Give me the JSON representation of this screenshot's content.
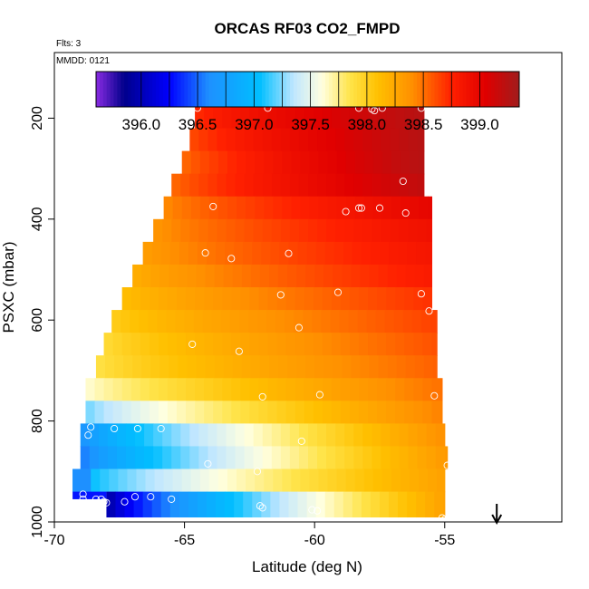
{
  "chart_data": {
    "type": "heatmap",
    "title": "ORCAS RF03 CO2_FMPD",
    "annotations": {
      "flights": "Flts: 3",
      "date": "MMDD: 0121"
    },
    "xlabel": "Latitude (deg N)",
    "ylabel": "PSXC (mbar)",
    "xlim": [
      -70,
      -50.5
    ],
    "ylim": [
      1000,
      70
    ],
    "y_reversed": true,
    "x_ticks": [
      -70,
      -65,
      -60,
      -55
    ],
    "x_tick_labels": [
      "-70",
      "-65",
      "-60",
      "-55"
    ],
    "y_ticks": [
      200,
      400,
      600,
      800,
      1000
    ],
    "y_tick_labels": [
      "200",
      "400",
      "600",
      "800",
      "1000"
    ],
    "colorbar": {
      "range": [
        395.6,
        399.35
      ],
      "ticks": [
        396.0,
        396.5,
        397.0,
        397.5,
        398.0,
        398.5,
        399.0
      ],
      "tick_labels": [
        "396.0",
        "396.5",
        "397.0",
        "397.5",
        "398.0",
        "398.5",
        "399.0"
      ],
      "stops": [
        [
          395.6,
          "#8a2be2"
        ],
        [
          395.85,
          "#00008b"
        ],
        [
          396.25,
          "#0000ff"
        ],
        [
          396.6,
          "#1e90ff"
        ],
        [
          397.05,
          "#00bfff"
        ],
        [
          397.35,
          "#bfe6ff"
        ],
        [
          397.6,
          "#ffffe0"
        ],
        [
          397.85,
          "#ffe44a"
        ],
        [
          398.1,
          "#ffc000"
        ],
        [
          398.4,
          "#ff9000"
        ],
        [
          398.75,
          "#ff2000"
        ],
        [
          399.05,
          "#e00000"
        ],
        [
          399.35,
          "#a01c1c"
        ]
      ]
    },
    "layers": [
      {
        "p_top": 175,
        "p_bot": 220,
        "lat_min": -64.6,
        "lat_max": -55.8,
        "west_value": 398.7,
        "east_value": 399.25
      },
      {
        "p_top": 220,
        "p_bot": 265,
        "lat_min": -64.8,
        "lat_max": -55.8,
        "west_value": 398.6,
        "east_value": 399.25
      },
      {
        "p_top": 265,
        "p_bot": 310,
        "lat_min": -65.1,
        "lat_max": -55.8,
        "west_value": 398.5,
        "east_value": 399.25
      },
      {
        "p_top": 310,
        "p_bot": 355,
        "lat_min": -65.5,
        "lat_max": -55.8,
        "west_value": 398.5,
        "east_value": 399.2
      },
      {
        "p_top": 355,
        "p_bot": 400,
        "lat_min": -65.8,
        "lat_max": -55.5,
        "west_value": 398.4,
        "east_value": 399.0
      },
      {
        "p_top": 400,
        "p_bot": 445,
        "lat_min": -66.2,
        "lat_max": -55.5,
        "west_value": 398.35,
        "east_value": 398.9
      },
      {
        "p_top": 445,
        "p_bot": 490,
        "lat_min": -66.6,
        "lat_max": -55.5,
        "west_value": 398.3,
        "east_value": 398.85
      },
      {
        "p_top": 490,
        "p_bot": 535,
        "lat_min": -67.0,
        "lat_max": -55.5,
        "west_value": 398.2,
        "east_value": 398.8
      },
      {
        "p_top": 535,
        "p_bot": 580,
        "lat_min": -67.4,
        "lat_max": -55.5,
        "west_value": 398.1,
        "east_value": 398.7
      },
      {
        "p_top": 580,
        "p_bot": 625,
        "lat_min": -67.8,
        "lat_max": -55.3,
        "west_value": 398.0,
        "east_value": 398.65
      },
      {
        "p_top": 625,
        "p_bot": 670,
        "lat_min": -68.1,
        "lat_max": -55.3,
        "west_value": 397.9,
        "east_value": 398.6
      },
      {
        "p_top": 670,
        "p_bot": 715,
        "lat_min": -68.4,
        "lat_max": -55.3,
        "west_value": 397.85,
        "east_value": 398.55
      },
      {
        "p_top": 715,
        "p_bot": 760,
        "lat_min": -68.8,
        "lat_max": -55.1,
        "west_value": 397.6,
        "east_value": 398.5
      },
      {
        "p_top": 760,
        "p_bot": 805,
        "lat_min": -68.8,
        "lat_max": -55.1,
        "west_value": 397.2,
        "east_value": 398.45
      },
      {
        "p_top": 805,
        "p_bot": 850,
        "lat_min": -69.0,
        "lat_max": -55.0,
        "west_value": 396.6,
        "east_value": 398.4
      },
      {
        "p_top": 850,
        "p_bot": 895,
        "lat_min": -69.0,
        "lat_max": -54.9,
        "west_value": 396.5,
        "east_value": 398.35
      },
      {
        "p_top": 895,
        "p_bot": 940,
        "lat_min": -69.3,
        "lat_max": -55.0,
        "west_value": 396.9,
        "east_value": 398.3
      },
      {
        "p_top": 940,
        "p_bot": 990,
        "lat_min": -68.0,
        "lat_max": -55.0,
        "west_value": 395.9,
        "east_value": 398.3
      }
    ],
    "extra_cells": [
      {
        "p_top": 895,
        "p_bot": 940,
        "lat_min": -69.3,
        "lat_max": -68.6,
        "value": 396.6
      },
      {
        "p_top": 940,
        "p_bot": 955,
        "lat_min": -69.3,
        "lat_max": -68.0,
        "value": 396.3
      }
    ],
    "observations": [
      [
        -64.5,
        180
      ],
      [
        -61.8,
        180
      ],
      [
        -58.3,
        180
      ],
      [
        -57.8,
        182
      ],
      [
        -57.7,
        185
      ],
      [
        -57.4,
        180
      ],
      [
        -55.9,
        180
      ],
      [
        -56.6,
        325
      ],
      [
        -63.9,
        375
      ],
      [
        -58.8,
        385
      ],
      [
        -58.3,
        378
      ],
      [
        -58.2,
        378
      ],
      [
        -57.5,
        378
      ],
      [
        -56.5,
        388
      ],
      [
        -64.2,
        467
      ],
      [
        -63.2,
        478
      ],
      [
        -61.0,
        468
      ],
      [
        -55.9,
        548
      ],
      [
        -59.1,
        545
      ],
      [
        -61.3,
        550
      ],
      [
        -55.6,
        582
      ],
      [
        -60.6,
        615
      ],
      [
        -64.7,
        648
      ],
      [
        -62.9,
        662
      ],
      [
        -62.0,
        752
      ],
      [
        -59.8,
        748
      ],
      [
        -55.4,
        750
      ],
      [
        -68.6,
        812
      ],
      [
        -67.7,
        815
      ],
      [
        -66.8,
        815
      ],
      [
        -65.9,
        815
      ],
      [
        -68.7,
        828
      ],
      [
        -60.5,
        840
      ],
      [
        -64.1,
        885
      ],
      [
        -62.2,
        900
      ],
      [
        -54.9,
        888
      ],
      [
        -68.4,
        955
      ],
      [
        -68.2,
        955
      ],
      [
        -68.1,
        960
      ],
      [
        -66.9,
        950
      ],
      [
        -66.3,
        950
      ],
      [
        -65.5,
        955
      ],
      [
        -62.1,
        968
      ],
      [
        -62.0,
        972
      ],
      [
        -60.1,
        976
      ],
      [
        -59.9,
        978
      ],
      [
        -55.1,
        992
      ],
      [
        -55.0,
        995
      ],
      [
        -68.9,
        945
      ],
      [
        -68.9,
        955
      ],
      [
        -67.3,
        960
      ],
      [
        -68.0,
        962
      ]
    ],
    "marker_arrow_lat": -53.0,
    "grid": false
  }
}
